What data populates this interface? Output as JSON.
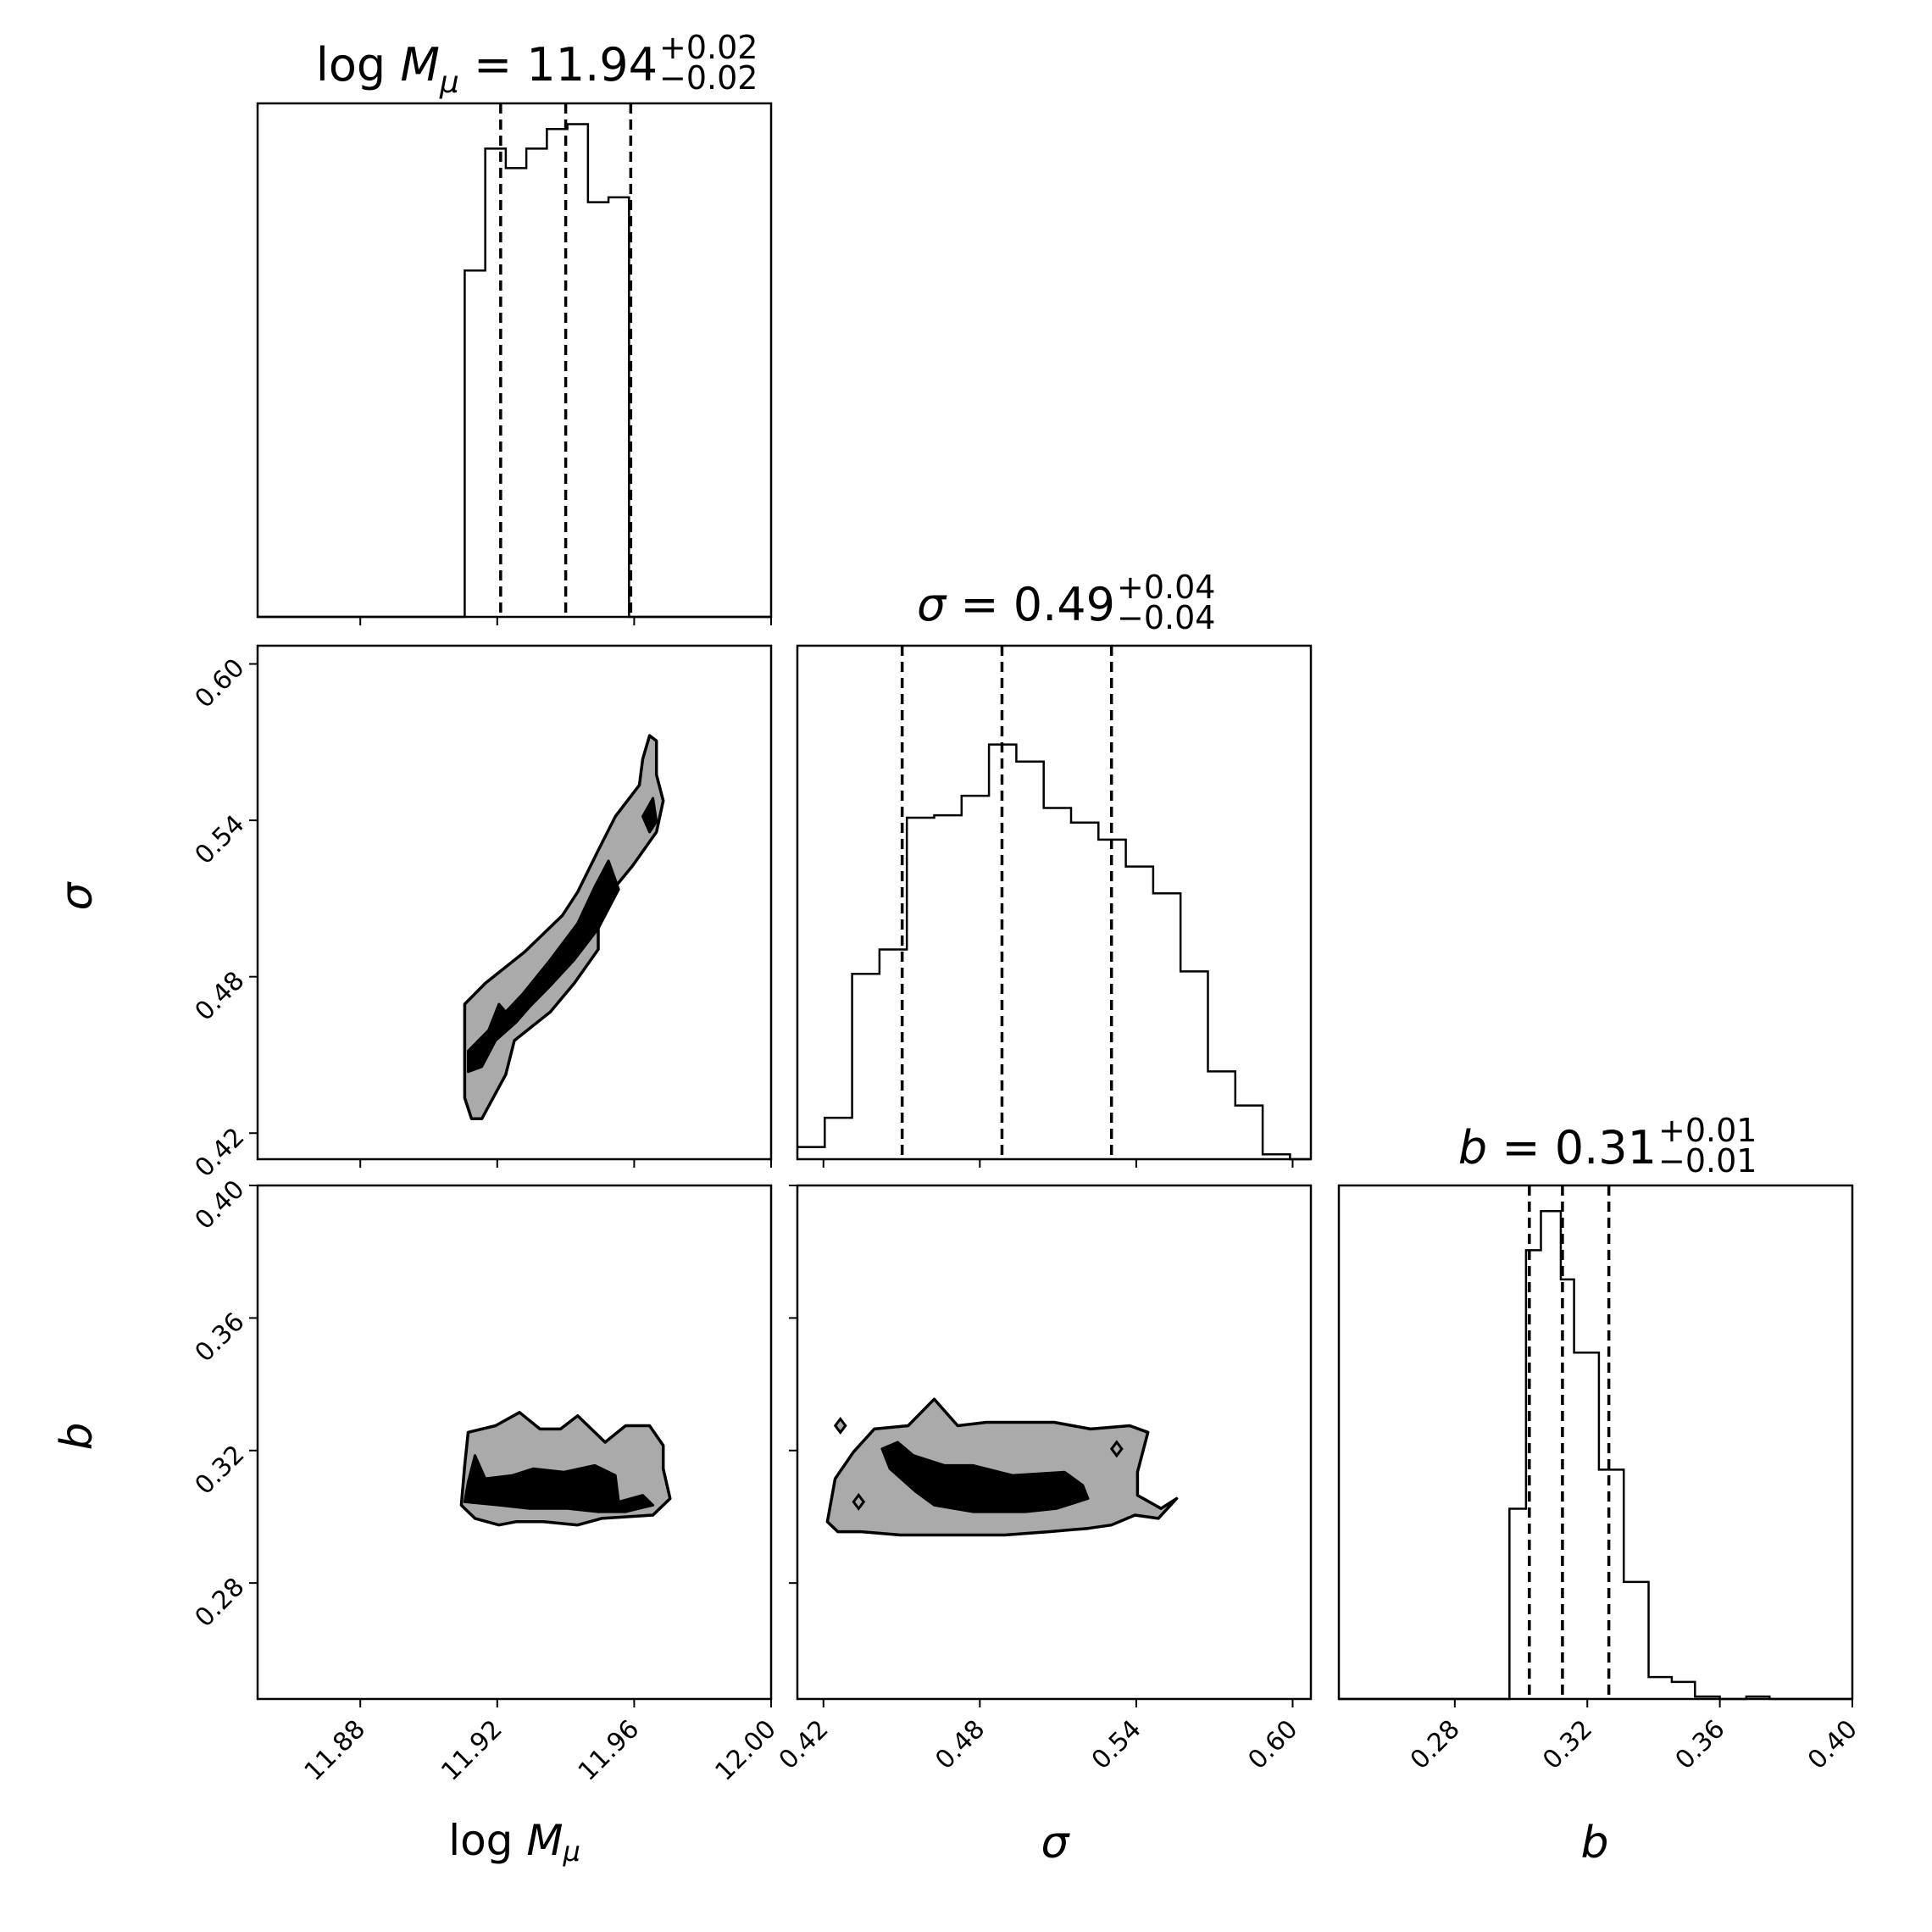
{
  "chart_data": {
    "type": "corner",
    "params": [
      {
        "key": "logM",
        "xlabel_prefix": "log ",
        "xlabel_math": "M",
        "xlabel_sub": "μ",
        "range": [
          11.85,
          12.0
        ],
        "ticks": [
          11.88,
          11.92,
          11.96,
          12.0
        ],
        "tick_labels": [
          "11.88",
          "11.92",
          "11.96",
          "12.00"
        ],
        "title": {
          "prefix": "log ",
          "math": "M",
          "sub": "μ",
          "value": "11.94",
          "plus": "+0.02",
          "minus": "−0.02"
        },
        "quantiles": [
          11.921,
          11.94,
          11.959
        ],
        "hist_edges": [
          11.85,
          11.9105,
          11.9165,
          11.9225,
          11.9285,
          11.9345,
          11.9405,
          11.9465,
          11.9525,
          11.9585,
          11.9645,
          11.9705,
          12.0
        ],
        "hist_counts": [
          0,
          0.71,
          0.96,
          0.92,
          0.96,
          1.0,
          1.01,
          0.85,
          0.86,
          0.0,
          0.0,
          0.0
        ]
      },
      {
        "key": "sigma",
        "xlabel_math": "σ",
        "range": [
          0.41,
          0.607
        ],
        "ticks": [
          0.42,
          0.48,
          0.54,
          0.6
        ],
        "tick_labels": [
          "0.42",
          "0.48",
          "0.54",
          "0.60"
        ],
        "title": {
          "math": "σ",
          "value": "0.49",
          "plus": "+0.04",
          "minus": "−0.04"
        },
        "quantiles": [
          0.4502,
          0.4885,
          0.5305
        ],
        "hist_edges": [
          0.41,
          0.4205,
          0.431,
          0.4415,
          0.452,
          0.4625,
          0.473,
          0.4835,
          0.494,
          0.5045,
          0.515,
          0.5255,
          0.536,
          0.5465,
          0.557,
          0.5675,
          0.578,
          0.5885,
          0.599,
          0.607
        ],
        "hist_counts": [
          0.025,
          0.085,
          0.38,
          0.43,
          0.7,
          0.705,
          0.745,
          0.85,
          0.815,
          0.72,
          0.69,
          0.655,
          0.6,
          0.545,
          0.385,
          0.18,
          0.11,
          0.01,
          0.0
        ]
      },
      {
        "key": "b",
        "xlabel_math": "b",
        "range": [
          0.245,
          0.4
        ],
        "ticks": [
          0.28,
          0.32,
          0.36,
          0.4
        ],
        "tick_labels": [
          "0.28",
          "0.32",
          "0.36",
          "0.40"
        ],
        "title": {
          "math": "b",
          "value": "0.31",
          "plus": "+0.01",
          "minus": "−0.01"
        },
        "quantiles": [
          0.3025,
          0.3125,
          0.3265
        ],
        "hist_edges": [
          0.245,
          0.2965,
          0.3015,
          0.306,
          0.312,
          0.316,
          0.3235,
          0.331,
          0.3385,
          0.3455,
          0.3525,
          0.36,
          0.368,
          0.375,
          0.382,
          0.4
        ],
        "hist_counts": [
          0,
          0.39,
          0.92,
          1.0,
          0.86,
          0.71,
          0.47,
          0.24,
          0.045,
          0.035,
          0.005,
          0.0,
          0.005,
          0.0,
          0.0
        ]
      }
    ],
    "contours": [
      {
        "x_param": "logM",
        "y_param": "sigma",
        "outer": [
          [
            11.9105,
            0.4485
          ],
          [
            11.9105,
            0.4595
          ],
          [
            11.913,
            0.4595
          ],
          [
            11.9135,
            0.4565
          ],
          [
            11.922,
            0.4725
          ],
          [
            11.929,
            0.4825
          ],
          [
            11.9355,
            0.4945
          ],
          [
            11.9445,
            0.5065
          ],
          [
            11.949,
            0.5155
          ],
          [
            11.9555,
            0.5355
          ],
          [
            11.963,
            0.5625
          ],
          [
            11.965,
            0.5535
          ],
          [
            11.967,
            0.5465
          ],
          [
            11.9665,
            0.5385
          ],
          [
            11.9605,
            0.5155
          ],
          [
            11.9515,
            0.5035
          ],
          [
            11.949,
            0.4865
          ],
          [
            11.9425,
            0.4755
          ],
          [
            11.9365,
            0.4675
          ],
          [
            11.9265,
            0.4575
          ],
          [
            11.9225,
            0.4485
          ],
          [
            11.9185,
            0.4425
          ],
          [
            11.912,
            0.4425
          ]
        ],
        "outer_all": [
          [
            11.9105,
            0.4495
          ],
          [
            11.9105,
            0.4695
          ],
          [
            11.9165,
            0.4775
          ],
          [
            11.928,
            0.4895
          ],
          [
            11.939,
            0.5035
          ],
          [
            11.9435,
            0.5125
          ],
          [
            11.9495,
            0.5285
          ],
          [
            11.9545,
            0.5415
          ],
          [
            11.9615,
            0.5535
          ],
          [
            11.9625,
            0.5635
          ],
          [
            11.9645,
            0.5725
          ],
          [
            11.9665,
            0.5705
          ],
          [
            11.9665,
            0.5575
          ],
          [
            11.9685,
            0.5475
          ],
          [
            11.9665,
            0.5355
          ],
          [
            11.9595,
            0.5225
          ],
          [
            11.9495,
            0.5065
          ],
          [
            11.9495,
            0.4905
          ],
          [
            11.9425,
            0.4775
          ],
          [
            11.9355,
            0.4665
          ],
          [
            11.925,
            0.4555
          ],
          [
            11.9225,
            0.4425
          ],
          [
            11.9155,
            0.4255
          ],
          [
            11.9125,
            0.4255
          ],
          [
            11.9105,
            0.4335
          ]
        ],
        "inner": [
          [
            [
              11.9115,
              0.4435
            ],
            [
              11.9115,
              0.4515
            ],
            [
              11.9175,
              0.4595
            ],
            [
              11.9205,
              0.4695
            ],
            [
              11.9225,
              0.4665
            ],
            [
              11.9275,
              0.4735
            ],
            [
              11.9355,
              0.4865
            ],
            [
              11.9435,
              0.5005
            ],
            [
              11.9485,
              0.5145
            ],
            [
              11.9525,
              0.5245
            ],
            [
              11.9555,
              0.5135
            ],
            [
              11.9495,
              0.4985
            ],
            [
              11.9425,
              0.4865
            ],
            [
              11.9355,
              0.4765
            ],
            [
              11.9295,
              0.4685
            ],
            [
              11.9255,
              0.4625
            ],
            [
              11.9195,
              0.4555
            ],
            [
              11.9155,
              0.4455
            ]
          ],
          [
            [
              11.9625,
              0.5415
            ],
            [
              11.9655,
              0.5485
            ],
            [
              11.9665,
              0.5395
            ],
            [
              11.9645,
              0.5355
            ]
          ]
        ]
      },
      {
        "x_param": "logM",
        "y_param": "b",
        "outer_all": [
          [
            11.9095,
            0.3035
          ],
          [
            11.9105,
            0.3155
          ],
          [
            11.9115,
            0.3255
          ],
          [
            11.9195,
            0.3275
          ],
          [
            11.9265,
            0.3315
          ],
          [
            11.9325,
            0.3265
          ],
          [
            11.9385,
            0.3265
          ],
          [
            11.9435,
            0.3305
          ],
          [
            11.9515,
            0.3225
          ],
          [
            11.9575,
            0.3275
          ],
          [
            11.9645,
            0.3275
          ],
          [
            11.9685,
            0.3215
          ],
          [
            11.9685,
            0.3145
          ],
          [
            11.9705,
            0.3055
          ],
          [
            11.9655,
            0.3005
          ],
          [
            11.9505,
            0.2995
          ],
          [
            11.9435,
            0.2975
          ],
          [
            11.9335,
            0.2985
          ],
          [
            11.9255,
            0.2985
          ],
          [
            11.9205,
            0.2975
          ],
          [
            11.9135,
            0.2995
          ]
        ],
        "inner": [
          [
            [
              11.9105,
              0.3045
            ],
            [
              11.9115,
              0.3105
            ],
            [
              11.9135,
              0.3185
            ],
            [
              11.9165,
              0.3115
            ],
            [
              11.9245,
              0.3125
            ],
            [
              11.9305,
              0.3145
            ],
            [
              11.9395,
              0.3135
            ],
            [
              11.9485,
              0.3155
            ],
            [
              11.9545,
              0.3125
            ],
            [
              11.9555,
              0.3045
            ],
            [
              11.9625,
              0.3065
            ],
            [
              11.9655,
              0.3035
            ],
            [
              11.9575,
              0.3015
            ],
            [
              11.9495,
              0.3015
            ],
            [
              11.9405,
              0.3025
            ],
            [
              11.9295,
              0.3025
            ],
            [
              11.9205,
              0.3035
            ]
          ]
        ]
      },
      {
        "x_param": "sigma",
        "y_param": "b",
        "outer_all": [
          [
            0.4215,
            0.2985
          ],
          [
            0.4245,
            0.3115
          ],
          [
            0.4315,
            0.3195
          ],
          [
            0.4395,
            0.3265
          ],
          [
            0.4525,
            0.3275
          ],
          [
            0.4625,
            0.3355
          ],
          [
            0.4715,
            0.3275
          ],
          [
            0.4825,
            0.3285
          ],
          [
            0.4975,
            0.3285
          ],
          [
            0.5085,
            0.3285
          ],
          [
            0.5225,
            0.3265
          ],
          [
            0.5375,
            0.3275
          ],
          [
            0.5445,
            0.3255
          ],
          [
            0.5405,
            0.3135
          ],
          [
            0.5405,
            0.3065
          ],
          [
            0.5495,
            0.3025
          ],
          [
            0.5555,
            0.3055
          ],
          [
            0.5485,
            0.2995
          ],
          [
            0.5395,
            0.3005
          ],
          [
            0.5305,
            0.2975
          ],
          [
            0.5215,
            0.2965
          ],
          [
            0.5065,
            0.2955
          ],
          [
            0.4895,
            0.2945
          ],
          [
            0.4675,
            0.2945
          ],
          [
            0.4495,
            0.2945
          ],
          [
            0.4345,
            0.2955
          ],
          [
            0.4255,
            0.2955
          ]
        ],
        "inner": [
          [
            [
              0.4455,
              0.3145
            ],
            [
              0.4555,
              0.3075
            ],
            [
              0.4625,
              0.3035
            ],
            [
              0.4775,
              0.3015
            ],
            [
              0.4975,
              0.3015
            ],
            [
              0.5095,
              0.3025
            ],
            [
              0.5215,
              0.3055
            ],
            [
              0.5195,
              0.3095
            ],
            [
              0.5125,
              0.3135
            ],
            [
              0.4925,
              0.3125
            ],
            [
              0.4775,
              0.3155
            ],
            [
              0.4665,
              0.3155
            ],
            [
              0.4585,
              0.3175
            ],
            [
              0.4545,
              0.3185
            ],
            [
              0.4485,
              0.3225
            ],
            [
              0.4425,
              0.3205
            ]
          ]
        ],
        "islands": [
          [
            0.4265,
            0.3275
          ],
          [
            0.4335,
            0.3045
          ],
          [
            0.5325,
            0.3205
          ]
        ]
      }
    ]
  }
}
